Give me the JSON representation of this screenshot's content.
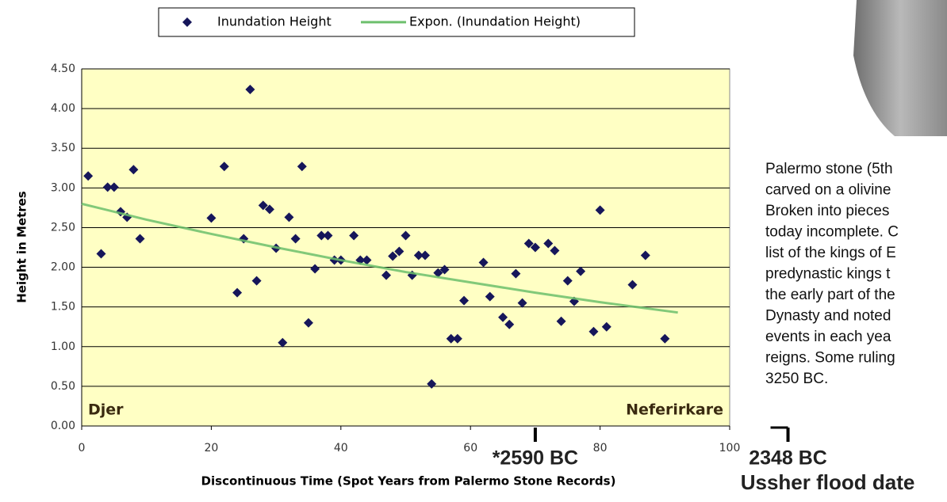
{
  "chart_data": {
    "type": "scatter",
    "xlabel": "Discontinuous Time (Spot Years from Palermo Stone Records)",
    "ylabel": "Height in Metres",
    "xlim": [
      0,
      100
    ],
    "xticks": [
      0,
      20,
      40,
      60,
      80,
      100
    ],
    "ylim": [
      0,
      4.5
    ],
    "yticks": [
      {
        "value": 0,
        "label": "0.00"
      },
      {
        "value": 0.5,
        "label": "0.50"
      },
      {
        "value": 1,
        "label": "1.00"
      },
      {
        "value": 1.5,
        "label": "1.50"
      },
      {
        "value": 2,
        "label": "2.00"
      },
      {
        "value": 2.5,
        "label": "2.50"
      },
      {
        "value": 3,
        "label": "3.00"
      },
      {
        "value": 3.5,
        "label": "3.50"
      },
      {
        "value": 4,
        "label": "4.00"
      },
      {
        "value": 4.5,
        "label": "4.50"
      }
    ],
    "grid": true,
    "background": "#ffffc4",
    "series": [
      {
        "name": "Inundation Height",
        "color": "#16165a",
        "x": [
          1,
          3,
          4,
          5,
          6,
          7,
          8,
          9,
          20,
          22,
          24,
          25,
          26,
          27,
          28,
          29,
          30,
          31,
          32,
          33,
          34,
          35,
          36,
          37,
          38,
          39,
          40,
          42,
          43,
          44,
          47,
          48,
          49,
          50,
          51,
          52,
          53,
          54,
          55,
          56,
          57,
          58,
          59,
          62,
          63,
          65,
          66,
          67,
          68,
          69,
          70,
          72,
          73,
          74,
          75,
          76,
          77,
          79,
          80,
          81,
          85,
          87,
          90
        ],
        "values": [
          3.15,
          2.17,
          3.01,
          3.01,
          2.7,
          2.63,
          3.23,
          2.36,
          2.62,
          3.27,
          1.68,
          2.36,
          4.24,
          1.83,
          2.78,
          2.73,
          2.24,
          1.05,
          2.63,
          2.36,
          3.27,
          1.3,
          1.98,
          2.4,
          2.4,
          2.09,
          2.09,
          2.4,
          2.09,
          2.09,
          1.9,
          2.14,
          2.2,
          2.4,
          1.9,
          2.15,
          2.15,
          0.53,
          1.93,
          1.97,
          1.1,
          1.1,
          1.58,
          2.06,
          1.63,
          1.37,
          1.28,
          1.92,
          1.55,
          2.3,
          2.25,
          2.3,
          2.21,
          1.32,
          1.83,
          1.57,
          1.95,
          1.19,
          2.72,
          1.25,
          1.78,
          2.15,
          1.1
        ]
      },
      {
        "name": "Expon. (Inundation Height)",
        "color": "#6cbf6c",
        "trend": true,
        "x": [
          0,
          10,
          20,
          30,
          40,
          50,
          60,
          70,
          80,
          92
        ],
        "values": [
          2.8,
          2.6,
          2.42,
          2.25,
          2.09,
          1.94,
          1.81,
          1.68,
          1.56,
          1.43
        ]
      }
    ],
    "annotations": [
      {
        "text": "Djer"
      },
      {
        "text": "Neferirkare"
      }
    ],
    "markers": [
      {
        "x": 70,
        "label": "*2590 BC"
      },
      {
        "x": 109,
        "label": "2348 BC",
        "sublabel": "Ussher flood date"
      }
    ]
  },
  "caption_lines": [
    "Palermo stone (5th",
    "carved on a olivine",
    "Broken into pieces",
    "today incomplete. C",
    "list of the kings of E",
    "predynastic kings t",
    "the early part of the",
    "Dynasty and noted",
    "events in each yea",
    "reigns. Some ruling",
    "3250 BC."
  ]
}
